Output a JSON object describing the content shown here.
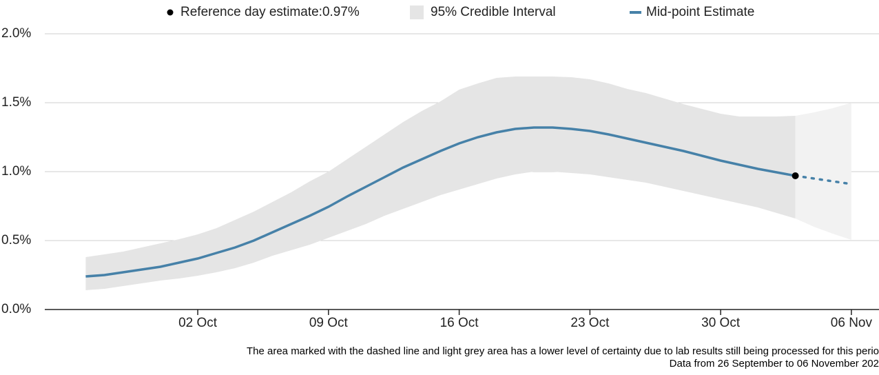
{
  "chart_data": {
    "type": "line",
    "categories": [
      null,
      null,
      null,
      null,
      null,
      null,
      "02 Oct",
      null,
      null,
      null,
      null,
      null,
      null,
      "09 Oct",
      null,
      null,
      null,
      null,
      null,
      null,
      "16 Oct",
      null,
      null,
      null,
      null,
      null,
      null,
      "23 Oct",
      null,
      null,
      null,
      null,
      null,
      null,
      "30 Oct",
      null,
      null,
      null,
      null,
      null,
      null,
      "06 Nov"
    ],
    "series": [
      {
        "name": "Mid-point Estimate",
        "color": "#4681a8",
        "values": [
          0.24,
          0.25,
          0.27,
          0.29,
          0.31,
          0.34,
          0.37,
          0.41,
          0.45,
          0.5,
          0.56,
          0.62,
          0.68,
          0.745,
          0.82,
          0.89,
          0.96,
          1.03,
          1.09,
          1.15,
          1.205,
          1.25,
          1.285,
          1.31,
          1.32,
          1.32,
          1.31,
          1.295,
          1.27,
          1.24,
          1.21,
          1.18,
          1.15,
          1.115,
          1.08,
          1.05,
          1.02,
          0.995,
          0.97,
          null,
          null,
          null
        ],
        "provisional_values": [
          null,
          null,
          null,
          null,
          null,
          null,
          null,
          null,
          null,
          null,
          null,
          null,
          null,
          null,
          null,
          null,
          null,
          null,
          null,
          null,
          null,
          null,
          null,
          null,
          null,
          null,
          null,
          null,
          null,
          null,
          null,
          null,
          null,
          null,
          null,
          null,
          null,
          null,
          0.97,
          0.95,
          0.93,
          0.91
        ]
      }
    ],
    "band": {
      "name": "95% Credible Interval",
      "color": "#e5e5e5",
      "provisional_color": "#f2f2f2",
      "lower": [
        0.14,
        0.15,
        0.17,
        0.19,
        0.21,
        0.225,
        0.245,
        0.27,
        0.3,
        0.34,
        0.39,
        0.43,
        0.47,
        0.52,
        0.57,
        0.62,
        0.68,
        0.73,
        0.78,
        0.83,
        0.87,
        0.91,
        0.95,
        0.98,
        1.0,
        1.0,
        0.99,
        0.98,
        0.96,
        0.94,
        0.92,
        0.89,
        0.86,
        0.83,
        0.8,
        0.77,
        0.74,
        0.7,
        0.66,
        0.6,
        0.55,
        0.505
      ],
      "upper": [
        0.38,
        0.4,
        0.42,
        0.45,
        0.48,
        0.51,
        0.545,
        0.59,
        0.65,
        0.71,
        0.78,
        0.85,
        0.93,
        1.0,
        1.09,
        1.18,
        1.27,
        1.36,
        1.44,
        1.51,
        1.595,
        1.64,
        1.68,
        1.69,
        1.69,
        1.69,
        1.685,
        1.67,
        1.64,
        1.6,
        1.57,
        1.53,
        1.49,
        1.455,
        1.42,
        1.4,
        1.4,
        1.4,
        1.405,
        1.43,
        1.46,
        1.5
      ]
    },
    "reference": {
      "label": "Reference day estimate:0.97%",
      "value": 0.97,
      "color": "#000000"
    },
    "ylim": [
      0,
      2
    ],
    "yticks": [
      {
        "value": 0,
        "label": "0.0%"
      },
      {
        "value": 0.5,
        "label": "0.5%"
      },
      {
        "value": 1,
        "label": "1.0%"
      },
      {
        "value": 1.5,
        "label": "1.5%"
      },
      {
        "value": 2,
        "label": "2.0%"
      }
    ],
    "grid": true,
    "notes": [
      "The area marked with the dashed line and light grey area has a lower level of certainty due to lab results still being processed for this perio",
      "Data from 26 September to 06 November 202"
    ]
  }
}
